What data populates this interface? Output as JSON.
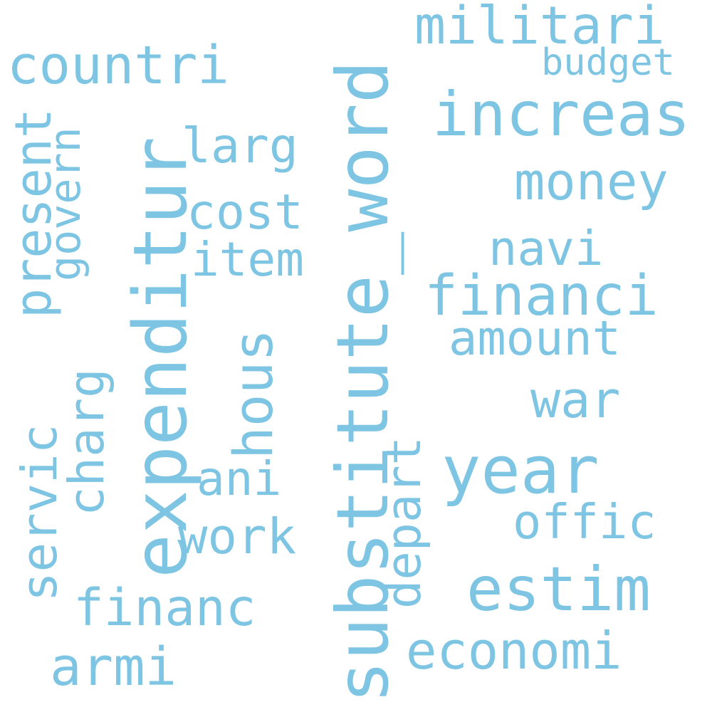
{
  "word_color": "#7ec5e3",
  "words": {
    "substitute_word": "substitute_word",
    "expenditur": "expenditur",
    "year": "year",
    "estim": "estim",
    "increas": "increas",
    "financi": "financi",
    "militari": "militari",
    "countri": "countri",
    "money": "money",
    "economi": "economi",
    "hous": "hous",
    "armi": "armi",
    "financ": "financ",
    "offic": "offic",
    "present": "present",
    "charg": "charg",
    "servic": "servic",
    "amount": "amount",
    "war": "war",
    "work": "work",
    "larg": "larg",
    "cost": "cost",
    "item": "item",
    "navi": "navi",
    "depart": "depart",
    "ani": "ani",
    "govern": "govern",
    "budget": "budget"
  }
}
